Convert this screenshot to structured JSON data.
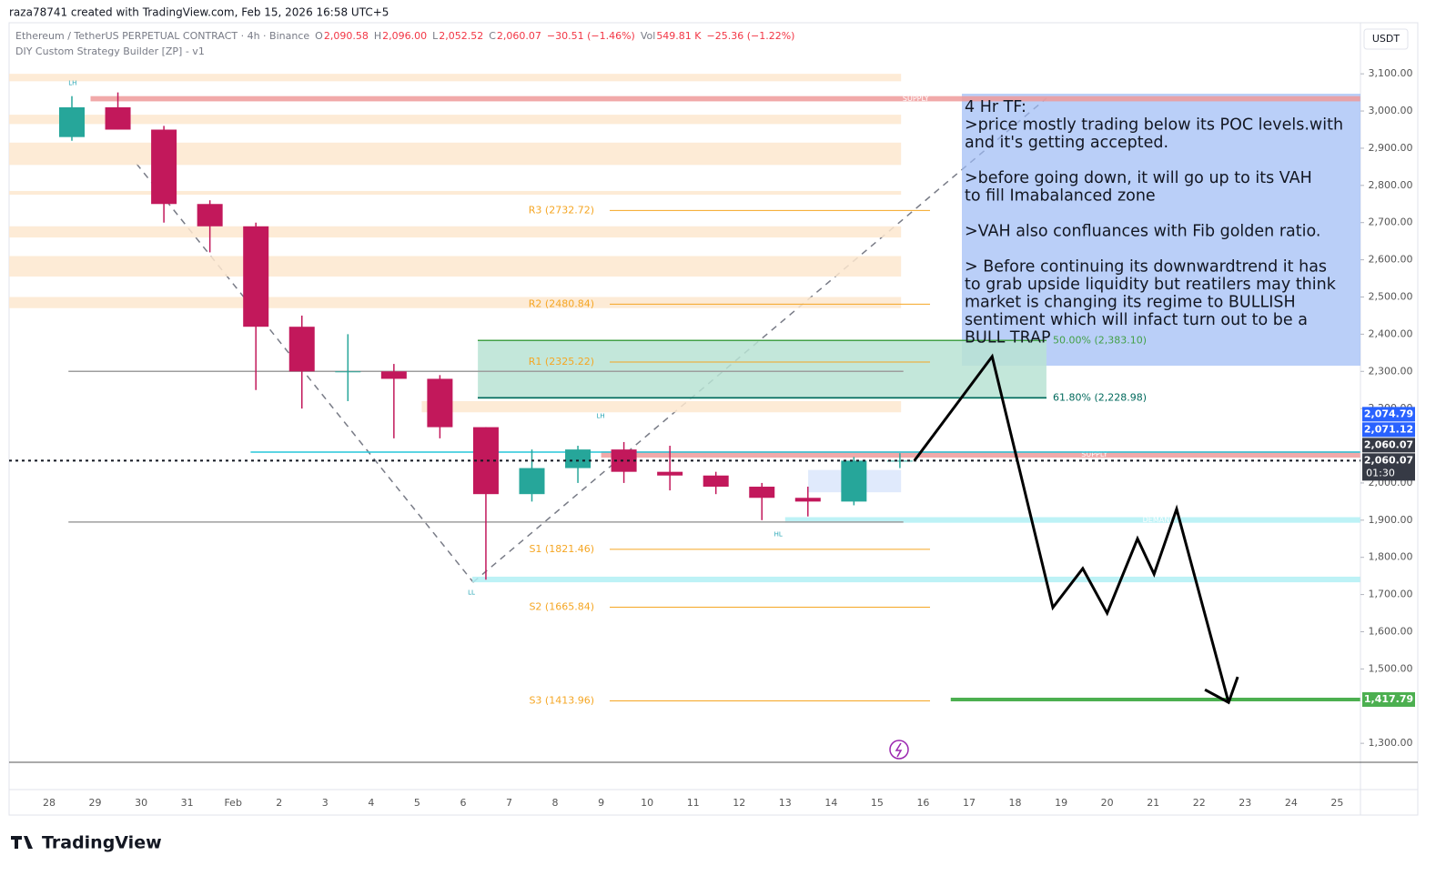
{
  "header": {
    "credit": "raza78741 created with TradingView.com, Feb 15, 2026 16:58 UTC+5"
  },
  "footer": {
    "brand": "TradingView"
  },
  "chart_data": {
    "type": "candlestick",
    "title": "Ethereum / TetherUS PERPETUAL CONTRACT · 4h · Binance",
    "ohlc_legend": [
      {
        "key": "O",
        "value": "2,090.58"
      },
      {
        "key": "H",
        "value": "2,096.00"
      },
      {
        "key": "L",
        "value": "2,052.52"
      },
      {
        "key": "C",
        "value": "2,060.07"
      }
    ],
    "change": "−30.51 (−1.46%)",
    "volume": {
      "key": "Vol",
      "value": "549.81 K",
      "change": "−25.36 (−1.22%)"
    },
    "indicator": "DIY Custom Strategy Builder [ZP] - v1",
    "currency": "USDT",
    "categories": [
      "28",
      "29",
      "30",
      "31",
      "Feb",
      "2",
      "3",
      "4",
      "5",
      "6",
      "7",
      "8",
      "9",
      "10",
      "11",
      "12",
      "13",
      "14",
      "15",
      "16",
      "17",
      "18",
      "19",
      "20",
      "21",
      "22",
      "23",
      "24",
      "25"
    ],
    "open": [
      2930,
      3010,
      2950,
      2750,
      2690,
      2420,
      2300,
      2300,
      2280,
      2150,
      1970,
      2040,
      2090,
      2030,
      2020,
      1990,
      1960,
      1950,
      2060,
      null,
      null,
      null,
      null,
      null,
      null,
      null,
      null,
      null,
      null
    ],
    "high": [
      3040,
      3050,
      2960,
      2760,
      2700,
      2450,
      2400,
      2320,
      2290,
      2150,
      2090,
      2100,
      2110,
      2100,
      2030,
      2000,
      1990,
      2070,
      2080,
      null,
      null,
      null,
      null,
      null,
      null,
      null,
      null,
      null,
      null
    ],
    "low": [
      2920,
      2950,
      2700,
      2620,
      2250,
      2200,
      2220,
      2120,
      2120,
      1740,
      1950,
      2000,
      2000,
      1980,
      1970,
      1900,
      1910,
      1940,
      2040,
      null,
      null,
      null,
      null,
      null,
      null,
      null,
      null,
      null,
      null
    ],
    "close": [
      3010,
      2950,
      2750,
      2690,
      2420,
      2300,
      2300,
      2280,
      2150,
      1970,
      2040,
      2090,
      2030,
      2020,
      1990,
      1960,
      1950,
      2060,
      2060,
      null,
      null,
      null,
      null,
      null,
      null,
      null,
      null,
      null,
      null
    ],
    "up_color": "#26a69a",
    "down_color": "#c2185b",
    "ylim": [
      1249,
      3230
    ],
    "yticks": [
      {
        "value": 3100,
        "label": "3,100.00"
      },
      {
        "value": 3000,
        "label": "3,000.00"
      },
      {
        "value": 2900,
        "label": "2,900.00"
      },
      {
        "value": 2800,
        "label": "2,800.00"
      },
      {
        "value": 2700,
        "label": "2,700.00"
      },
      {
        "value": 2600,
        "label": "2,600.00"
      },
      {
        "value": 2500,
        "label": "2,500.00"
      },
      {
        "value": 2400,
        "label": "2,400.00"
      },
      {
        "value": 2300,
        "label": "2,300.00"
      },
      {
        "value": 2200,
        "label": "2,200.00"
      },
      {
        "value": 2000,
        "label": "2,000.00"
      },
      {
        "value": 1900,
        "label": "1,900.00"
      },
      {
        "value": 1800,
        "label": "1,800.00"
      },
      {
        "value": 1700,
        "label": "1,700.00"
      },
      {
        "value": 1600,
        "label": "1,600.00"
      },
      {
        "value": 1500,
        "label": "1,500.00"
      },
      {
        "value": 1300,
        "label": "1,300.00"
      }
    ],
    "zones": [
      {
        "from": 3080,
        "to": 3100,
        "start": -0.87,
        "end": 18.52,
        "color": "#fde7cf"
      },
      {
        "name": "SUPPLY",
        "from": 3026,
        "to": 3040,
        "start": 0.9,
        "end": 28.5,
        "color": "#ef9a9a"
      },
      {
        "from": 2965,
        "to": 2990,
        "start": -0.87,
        "end": 18.52,
        "color": "#fde7cf"
      },
      {
        "from": 2855,
        "to": 2915,
        "start": -0.87,
        "end": 18.52,
        "color": "#fde7cf"
      },
      {
        "from": 2775,
        "to": 2785,
        "start": -0.87,
        "end": 18.52,
        "color": "#fde7cf"
      },
      {
        "from": 2660,
        "to": 2690,
        "start": -0.87,
        "end": 18.52,
        "color": "#fde7cf"
      },
      {
        "from": 2555,
        "to": 2610,
        "start": -0.87,
        "end": 18.52,
        "color": "#fde7cf"
      },
      {
        "from": 2470,
        "to": 2500,
        "start": -0.87,
        "end": 18.52,
        "color": "#fde7cf"
      },
      {
        "from": 2225,
        "to": 2385,
        "start": 9.32,
        "end": 21.68,
        "color": "#b9e3d3"
      },
      {
        "from": 2190,
        "to": 2220,
        "start": 8.1,
        "end": 18.52,
        "color": "#fde7cf"
      },
      {
        "name": "SUPPLY",
        "from": 2068,
        "to": 2085,
        "start": 12.0,
        "end": 28.5,
        "color": "#ef9a9a"
      },
      {
        "from": 1975,
        "to": 2035,
        "start": 16.5,
        "end": 18.52,
        "color": "#dbe6fb"
      },
      {
        "name": "DEMAND",
        "from": 1893,
        "to": 1908,
        "start": 16.0,
        "end": 28.5,
        "color": "#b2f0f4"
      },
      {
        "from": 1733,
        "to": 1748,
        "start": 9.2,
        "end": 28.5,
        "color": "#b2f0f4"
      }
    ],
    "hlines": [
      {
        "value": 2300,
        "color": "#9e9e9e",
        "start": 0.42,
        "end": 18.57
      },
      {
        "value": 1895,
        "color": "#9e9e9e",
        "start": 0.42,
        "end": 18.57
      },
      {
        "value": 2083,
        "color": "#26c6da",
        "start": 4.38,
        "end": 28.5
      }
    ],
    "pivots": [
      {
        "label": "R3 (2732.72)",
        "value": 2732.72
      },
      {
        "label": "R2 (2480.84)",
        "value": 2480.84
      },
      {
        "label": "R1 (2325.22)",
        "value": 2325.22
      },
      {
        "label": "S1 (1821.46)",
        "value": 1821.46
      },
      {
        "label": "S2 (1665.84)",
        "value": 1665.84
      },
      {
        "label": "S3 (1413.96)",
        "value": 1413.96
      }
    ],
    "fib": [
      {
        "label": "50.00% (2,383.10)",
        "value": 2383.1,
        "color": "#43a047"
      },
      {
        "label": "61.80% (2,228.98)",
        "value": 2228.98,
        "color": "#00695c"
      }
    ],
    "swings": [
      {
        "label": "LH",
        "x": 0.51,
        "y": 3075
      },
      {
        "label": "LH",
        "x": 11.99,
        "y": 2180
      },
      {
        "label": "HL",
        "x": 15.85,
        "y": 1862
      },
      {
        "label": "LL",
        "x": 9.18,
        "y": 1705
      }
    ],
    "projection": {
      "x": [
        18.81,
        20.5,
        21.82,
        22.47,
        23.0,
        23.66,
        24.02,
        24.51,
        25.64
      ],
      "y": [
        2060,
        2340,
        1665,
        1770,
        1650,
        1850,
        1755,
        1930,
        1410
      ]
    },
    "target": {
      "value": 1417.79,
      "start": 19.6,
      "end": 28.5,
      "color": "#4caf50"
    },
    "price_tags": [
      {
        "value": 2074.79,
        "label": "2,074.79",
        "color": "#2962ff"
      },
      {
        "value": 2071.12,
        "label": "2,071.12",
        "color": "#2962ff"
      },
      {
        "value": 2060.07,
        "label": "2,060.07",
        "color": "#363a45"
      },
      {
        "value": 2060.07,
        "label": "2,060.07",
        "color": "#363a45",
        "countdown": "01:30"
      },
      {
        "value": 1417.79,
        "label": "1,417.79",
        "color": "#4caf50"
      }
    ],
    "note": [
      [
        "4 Hr TF:",
        ">price mostly trading below its POC levels.with",
        "and it's getting accepted."
      ],
      [
        ">before going down, it will go up to its VAH",
        "to fill Imabalanced zone"
      ],
      [
        ">VAH also confluances with Fib golden ratio."
      ],
      [
        "> Before continuing its downwardtrend it has",
        "to grab upside liquidity but reatilers may think",
        "market is changing its regime to BULLISH",
        "sentiment which will infact turn out to be a",
        "BULL TRAP"
      ]
    ]
  }
}
